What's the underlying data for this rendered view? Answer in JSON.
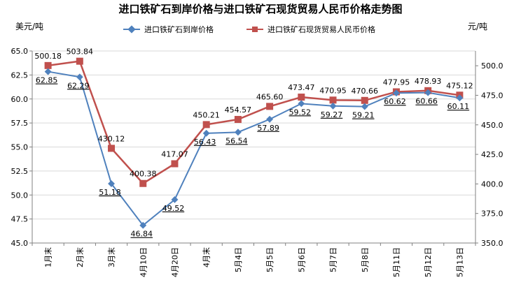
{
  "chart_data": {
    "type": "line",
    "title": "进口铁矿石到岸价格与进口铁矿石现货贸易人民币价格走势图",
    "y_left_label": "美元/吨",
    "y_right_label": "元/吨",
    "categories": [
      "1月末",
      "2月末",
      "3月末",
      "4月10日",
      "4月20日",
      "4月末",
      "5月4日",
      "5月5日",
      "5月6日",
      "5月7日",
      "5月8日",
      "5月11日",
      "5月12日",
      "5月13日"
    ],
    "y_left": {
      "min": 45.0,
      "max": 65.0,
      "step": 2.5,
      "ticks": [
        "45.0",
        "47.5",
        "50.0",
        "52.5",
        "55.0",
        "57.5",
        "60.0",
        "62.5",
        "65.0"
      ]
    },
    "y_right": {
      "min": 350.0,
      "max": 512.5,
      "step": 25,
      "ticks": [
        "350.0",
        "375.0",
        "400.0",
        "425.0",
        "450.0",
        "475.0",
        "500.0"
      ]
    },
    "grid": "horizontal",
    "legend_position": "top",
    "series": [
      {
        "name": "进口铁矿石到岸价格",
        "axis": "left",
        "color": "#4F81BD",
        "marker": "diamond",
        "values": [
          62.85,
          62.29,
          51.18,
          46.84,
          49.52,
          56.43,
          56.54,
          57.89,
          59.52,
          59.27,
          59.21,
          60.62,
          60.66,
          60.11
        ],
        "labels": [
          "62.85",
          "62.29",
          "51.18",
          "46.84",
          "49.52",
          "56.43",
          "56.54",
          "57.89",
          "59.52",
          "59.27",
          "59.21",
          "60.62",
          "60.66",
          "60.11"
        ]
      },
      {
        "name": "进口铁矿石现货贸易人民币价格",
        "axis": "right",
        "color": "#C0504D",
        "marker": "square",
        "values": [
          500.18,
          503.84,
          430.12,
          400.38,
          417.07,
          450.21,
          454.57,
          465.6,
          473.47,
          470.95,
          470.66,
          477.95,
          478.93,
          475.12
        ],
        "labels": [
          "500.18",
          "503.84",
          "430.12",
          "400.38",
          "417.07",
          "450.21",
          "454.57",
          "465.60",
          "473.47",
          "470.95",
          "470.66",
          "477.95",
          "478.93",
          "475.12"
        ]
      }
    ]
  }
}
